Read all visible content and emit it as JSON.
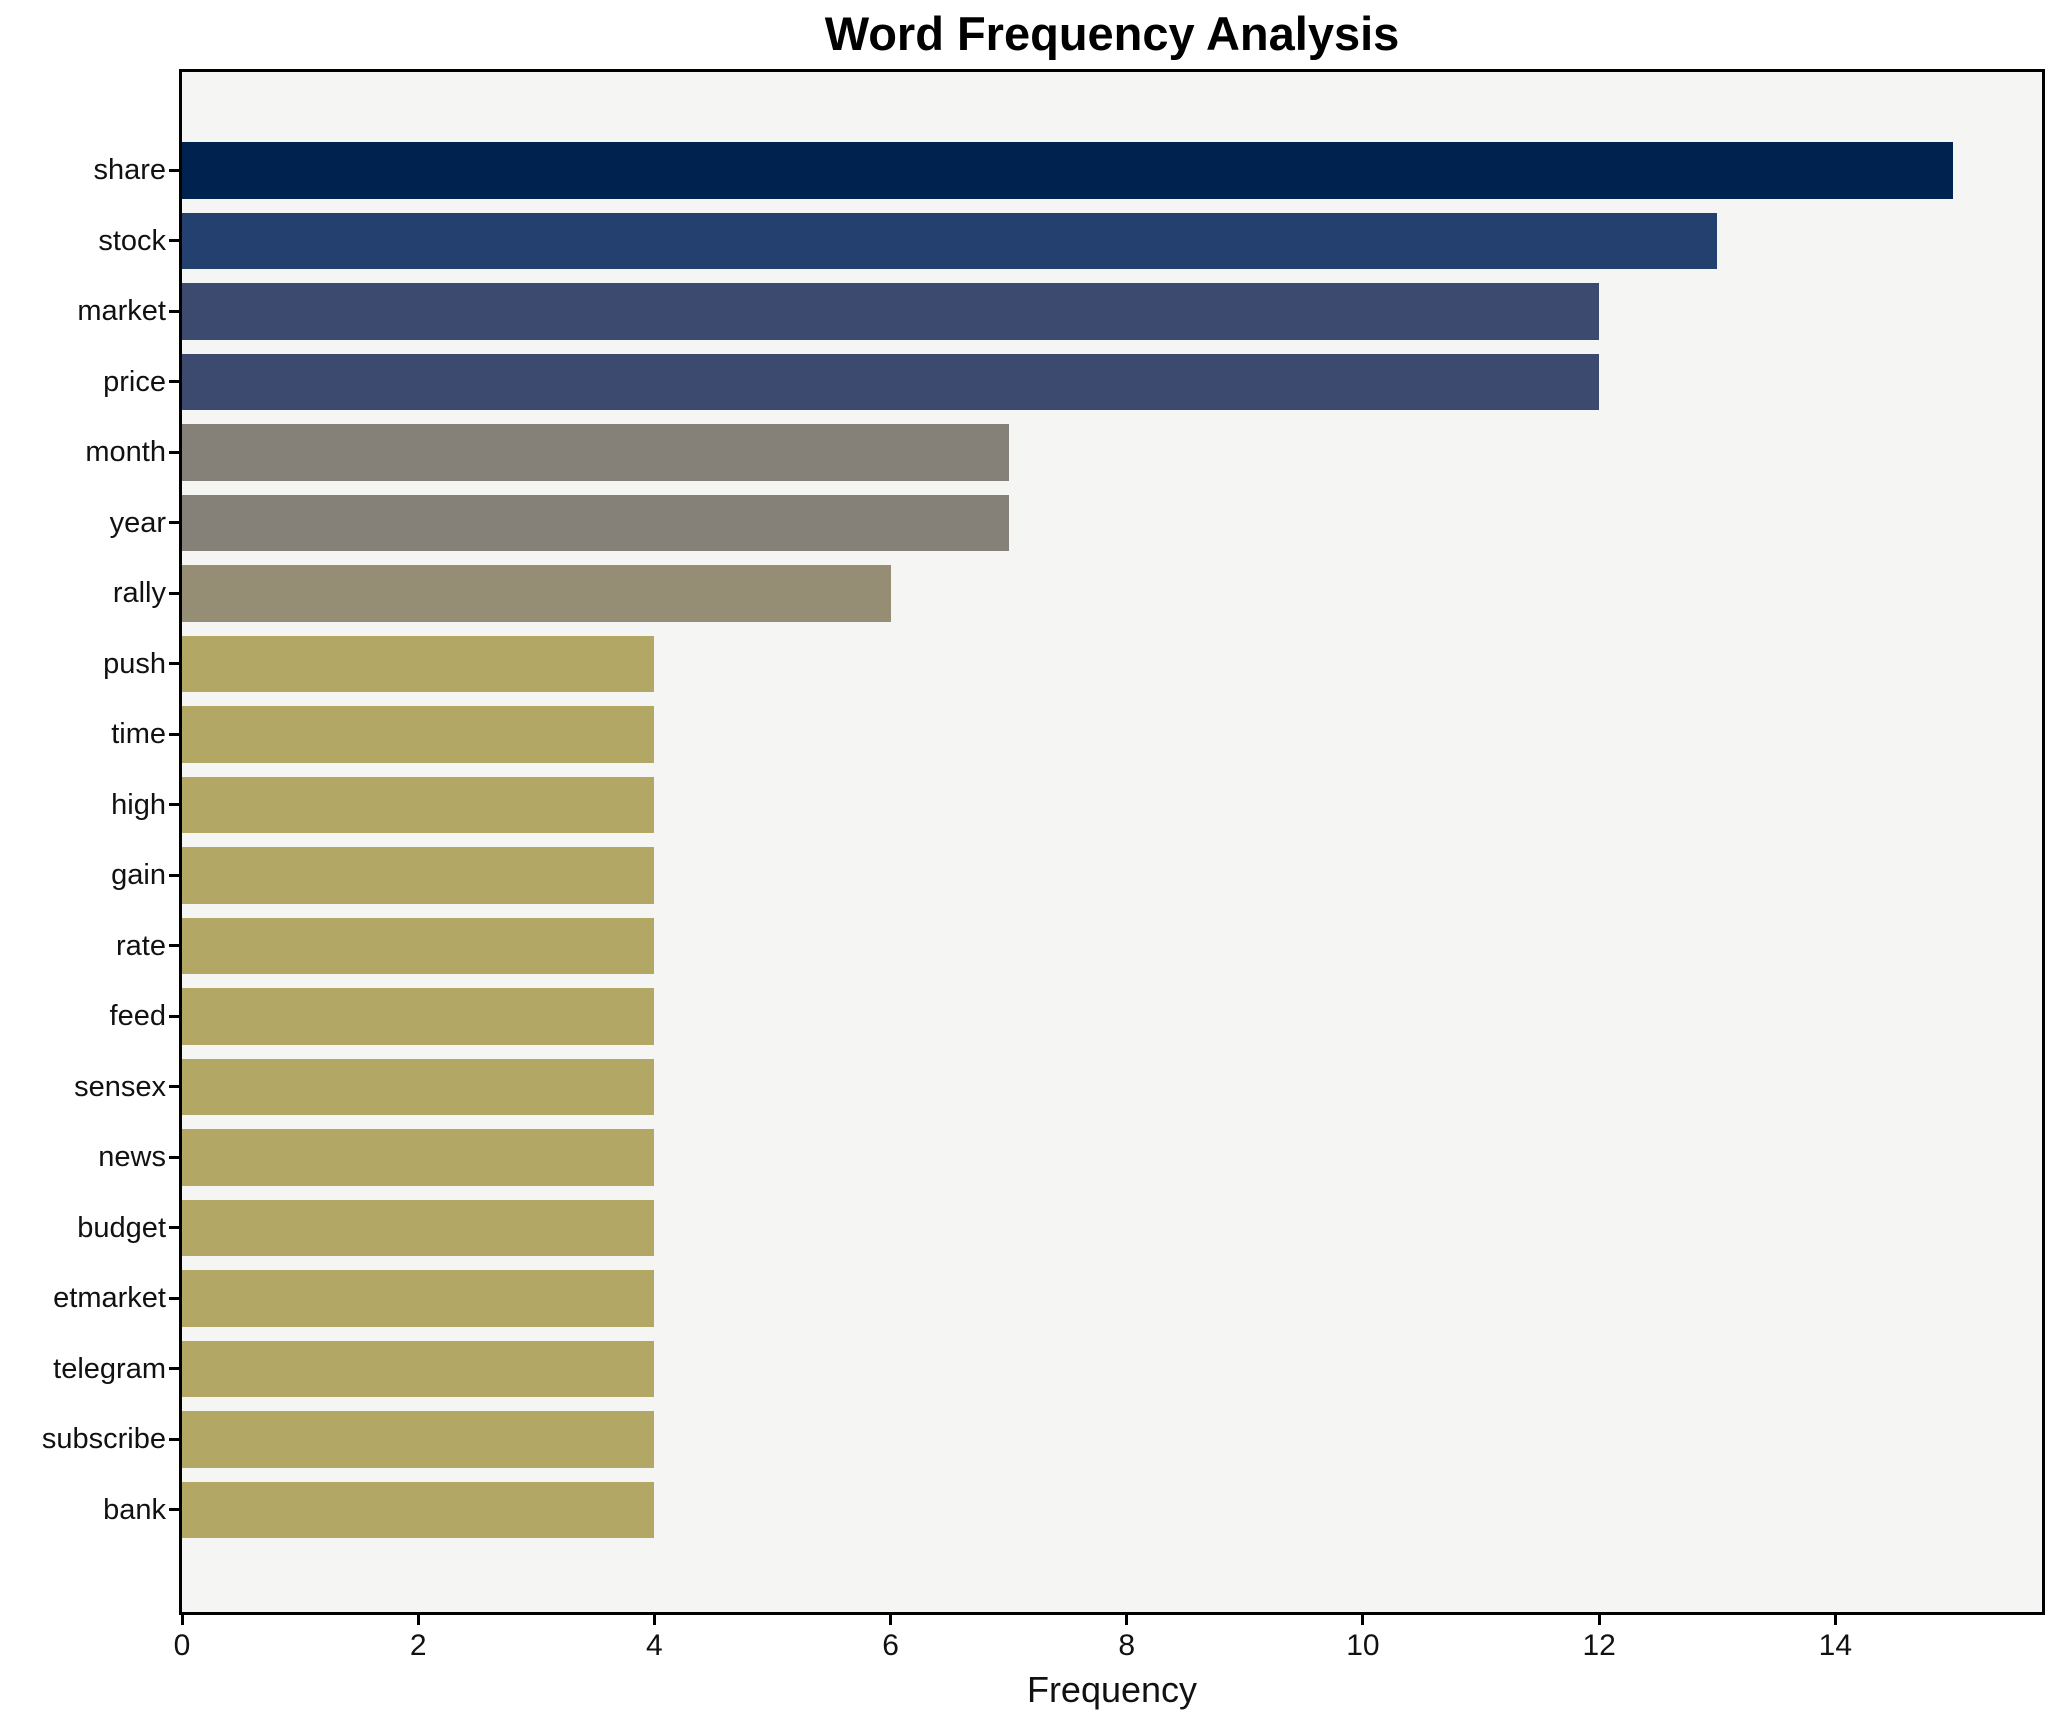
{
  "title": "Word Frequency Analysis",
  "x_axis_label": "Frequency",
  "chart_data": {
    "type": "bar",
    "orientation": "horizontal",
    "title": "Word Frequency Analysis",
    "xlabel": "Frequency",
    "ylabel": "",
    "categories": [
      "share",
      "stock",
      "market",
      "price",
      "month",
      "year",
      "rally",
      "push",
      "time",
      "high",
      "gain",
      "rate",
      "feed",
      "sensex",
      "news",
      "budget",
      "etmarket",
      "telegram",
      "subscribe",
      "bank"
    ],
    "values": [
      15,
      13,
      12,
      12,
      7,
      7,
      6,
      4,
      4,
      4,
      4,
      4,
      4,
      4,
      4,
      4,
      4,
      4,
      4,
      4
    ],
    "bar_colors": [
      "#00224e",
      "#24406f",
      "#3b4a6e",
      "#3b4a6e",
      "#858078",
      "#858078",
      "#958d74",
      "#b3a766",
      "#b3a766",
      "#b3a766",
      "#b3a766",
      "#b3a766",
      "#b3a766",
      "#b3a766",
      "#b3a766",
      "#b3a766",
      "#b3a766",
      "#b3a766",
      "#b3a766",
      "#b3a766"
    ],
    "xlim": [
      0,
      15.75
    ],
    "xticks": [
      0,
      2,
      4,
      6,
      8,
      10,
      12,
      14
    ],
    "grid": false,
    "legend": false,
    "plot_background": "#f5f5f4",
    "figure_background": "#ffffff",
    "spine_color": "#000000"
  }
}
